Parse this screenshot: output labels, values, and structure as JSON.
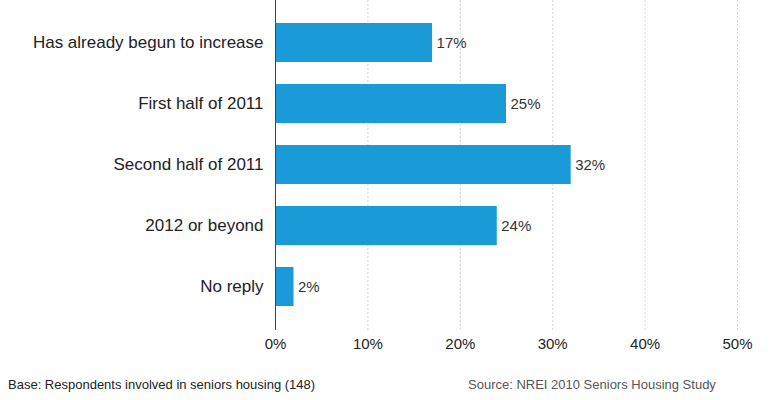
{
  "chart_data": {
    "type": "bar",
    "orientation": "horizontal",
    "categories": [
      "Has already begun to increase",
      "First half of 2011",
      "Second half of 2011",
      "2012 or beyond",
      "No reply"
    ],
    "values": [
      17,
      25,
      32,
      24,
      2
    ],
    "value_labels": [
      "17%",
      "25%",
      "32%",
      "24%",
      "2%"
    ],
    "data_labels": true,
    "color": "#1a9ad6",
    "xlim": [
      0,
      50
    ],
    "xticks": [
      {
        "value": 0,
        "label": "0%"
      },
      {
        "value": 10,
        "label": "10%"
      },
      {
        "value": 20,
        "label": "20%"
      },
      {
        "value": 30,
        "label": "30%"
      },
      {
        "value": 40,
        "label": "40%"
      },
      {
        "value": 50,
        "label": "50%"
      }
    ],
    "grid": true,
    "footnote": "Base: Respondents involved in seniors housing (148)",
    "source": "Source: NREI 2010 Seniors Housing Study"
  }
}
